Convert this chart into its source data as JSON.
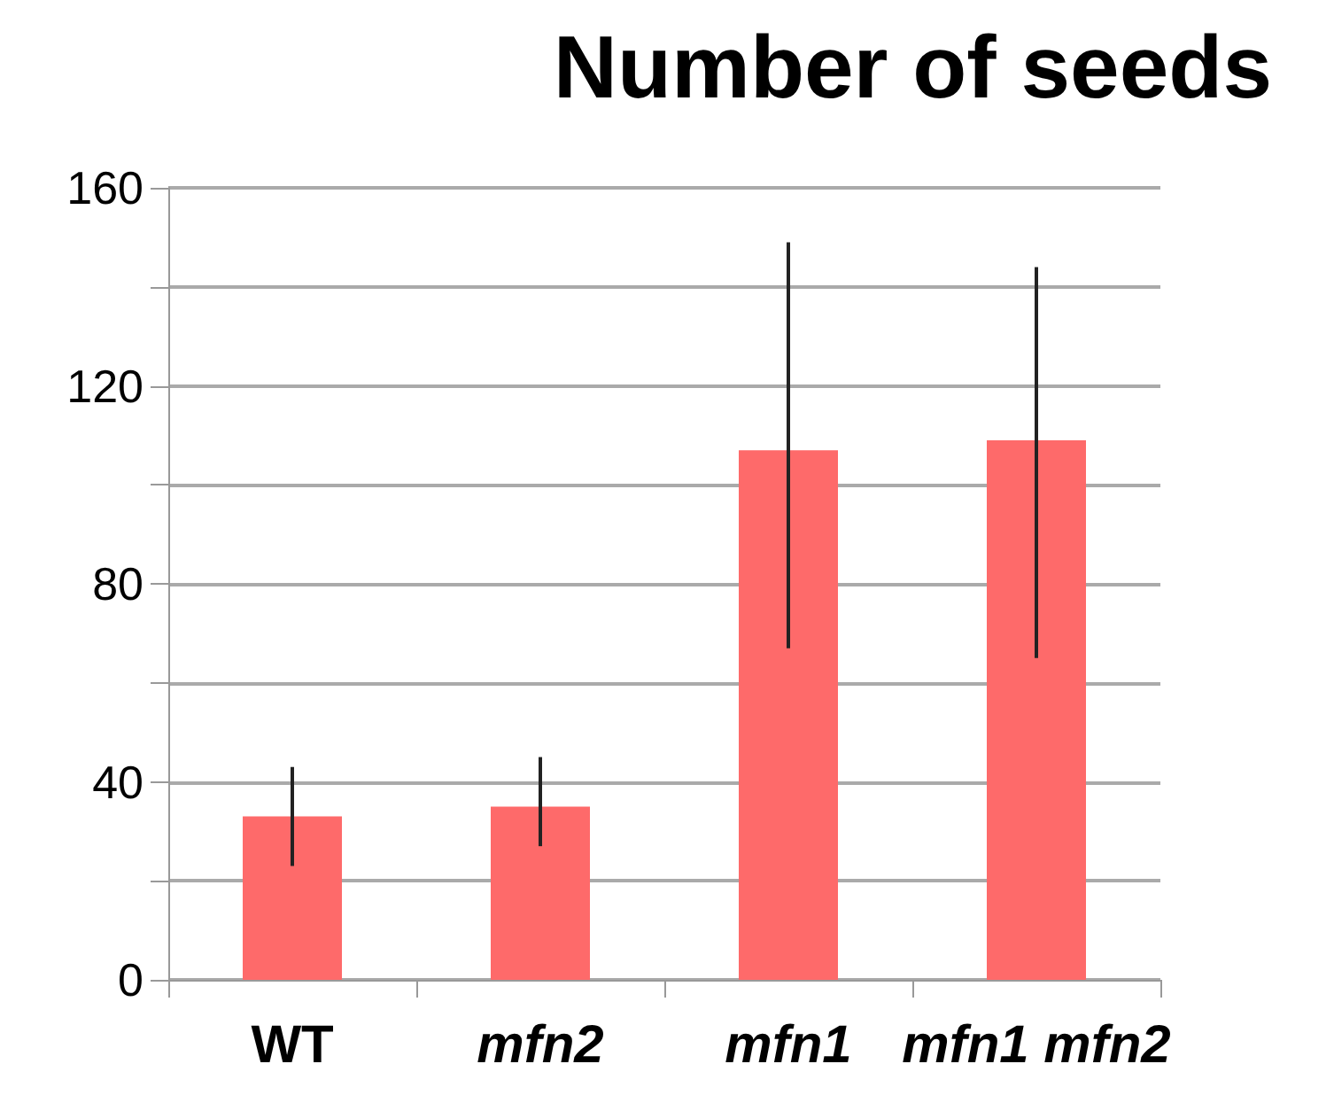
{
  "chart_data": {
    "type": "bar",
    "title": "Number of seeds",
    "categories": [
      "WT",
      "mfn2",
      "mfn1",
      "mfn1 mfn2"
    ],
    "values": [
      33,
      35,
      107,
      109
    ],
    "color": "#fe6a6a",
    "errors": [
      [
        23,
        43
      ],
      [
        27,
        45
      ],
      [
        67,
        149
      ],
      [
        65,
        144
      ]
    ],
    "ylim": [
      0,
      160
    ],
    "yticks": [
      0,
      {
        "value": 20,
        "label": null
      },
      40,
      {
        "value": 60,
        "label": null
      },
      80,
      {
        "value": 100,
        "label": null
      },
      120,
      {
        "value": 140,
        "label": null
      },
      160
    ],
    "grid": true
  }
}
